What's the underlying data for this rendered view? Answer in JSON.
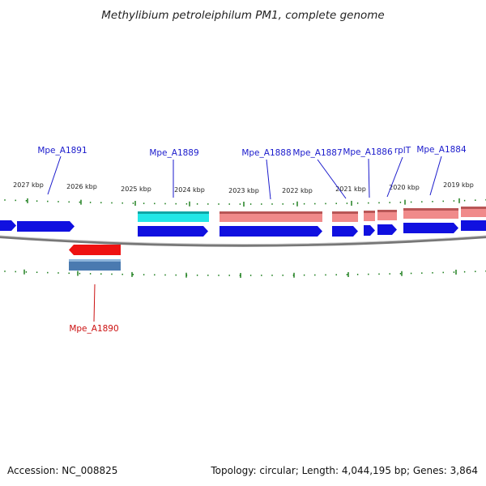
{
  "title": "Methylibium petroleiphilum PM1, complete genome",
  "footer": {
    "accession": "Accession: NC_008825",
    "summary": "Topology: circular; Length: 4,044,195 bp; Genes: 3,864"
  },
  "kbp_ticks": [
    {
      "id": "2027",
      "label": "2027 kbp"
    },
    {
      "id": "2026",
      "label": "2026 kbp"
    },
    {
      "id": "2025",
      "label": "2025 kbp"
    },
    {
      "id": "2024",
      "label": "2024 kbp"
    },
    {
      "id": "2023",
      "label": "2023 kbp"
    },
    {
      "id": "2022",
      "label": "2022 kbp"
    },
    {
      "id": "2021",
      "label": "2021 kbp"
    },
    {
      "id": "2020",
      "label": "2020 kbp"
    },
    {
      "id": "2019",
      "label": "2019 kbp"
    }
  ],
  "gene_labels": [
    {
      "id": "Mpe_A1891",
      "label": "Mpe_A1891",
      "strand": "plus"
    },
    {
      "id": "Mpe_A1889",
      "label": "Mpe_A1889",
      "strand": "plus"
    },
    {
      "id": "Mpe_A1888",
      "label": "Mpe_A1888",
      "strand": "plus"
    },
    {
      "id": "Mpe_A1887",
      "label": "Mpe_A1887",
      "strand": "plus"
    },
    {
      "id": "Mpe_A1886",
      "label": "Mpe_A1886",
      "strand": "plus"
    },
    {
      "id": "rplT",
      "label": "rplT",
      "strand": "plus"
    },
    {
      "id": "Mpe_A1884",
      "label": "Mpe_A1884",
      "strand": "plus"
    },
    {
      "id": "Mpe_A1890",
      "label": "Mpe_A1890",
      "strand": "minus"
    }
  ],
  "colors": {
    "plus_label": "#1a1acc",
    "minus_label": "#cc1111",
    "gene_blue": "#1010e0",
    "gene_red": "#ee1111",
    "feature_pink": "#f08a8a",
    "feature_cyan": "#22e6e6",
    "feature_steel": "#4a7ab0",
    "tick_green": "#117711",
    "backbone": "#777777"
  }
}
